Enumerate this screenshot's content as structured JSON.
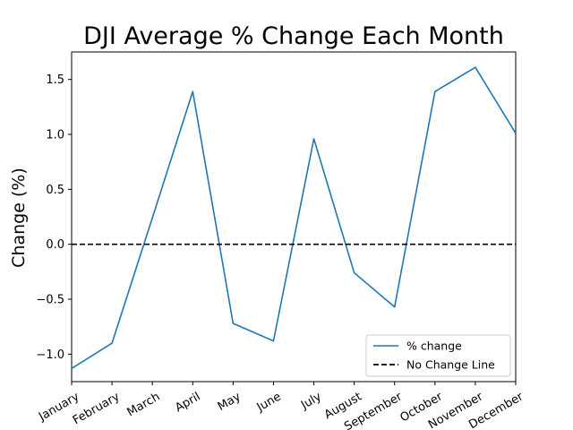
{
  "chart_data": {
    "type": "line",
    "title": "DJI Average % Change Each Month",
    "xlabel": "",
    "ylabel": "Change (%)",
    "categories": [
      "January",
      "February",
      "March",
      "April",
      "May",
      "June",
      "July",
      "August",
      "September",
      "October",
      "November",
      "December"
    ],
    "ylim": [
      -1.25,
      1.75
    ],
    "yticks": [
      "−1.0",
      "−0.5",
      "0.0",
      "0.5",
      "1.0",
      "1.5"
    ],
    "ytick_values": [
      -1.0,
      -0.5,
      0.0,
      0.5,
      1.0,
      1.5
    ],
    "series": [
      {
        "name": "% change",
        "color": "#1f77b4",
        "style": "solid",
        "values": [
          -1.13,
          -0.9,
          0.24,
          1.39,
          -0.72,
          -0.88,
          0.96,
          -0.26,
          -0.57,
          1.39,
          1.61,
          1.01
        ]
      },
      {
        "name": "No Change Line",
        "color": "#000000",
        "style": "dashed",
        "values": [
          0,
          0,
          0,
          0,
          0,
          0,
          0,
          0,
          0,
          0,
          0,
          0
        ]
      }
    ],
    "legend_position": "lower right",
    "grid": false
  }
}
